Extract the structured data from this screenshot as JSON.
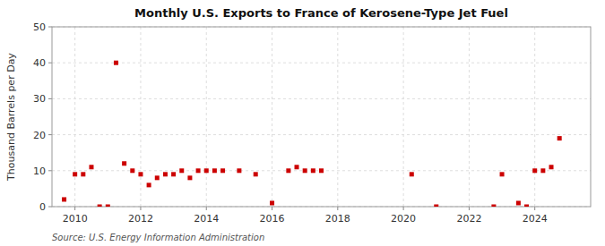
{
  "chart_data": {
    "type": "scatter",
    "title": "Monthly U.S. Exports to France of Kerosene-Type Jet Fuel",
    "y_label": "Thousand Barrels per Day",
    "annotations": [
      "Source: U.S. Energy Information Administration"
    ],
    "x": [
      2009.67,
      2010.0,
      2010.25,
      2010.5,
      2010.75,
      2011.0,
      2011.25,
      2011.5,
      2011.75,
      2012.0,
      2012.25,
      2012.5,
      2012.75,
      2013.0,
      2013.25,
      2013.5,
      2013.75,
      2014.0,
      2014.25,
      2014.5,
      2015.0,
      2015.5,
      2016.0,
      2016.5,
      2016.75,
      2017.0,
      2017.25,
      2017.5,
      2020.25,
      2021.0,
      2022.75,
      2023.0,
      2023.5,
      2023.75,
      2024.0,
      2024.25,
      2024.5,
      2024.75
    ],
    "values": [
      2,
      9,
      9,
      11,
      0,
      0,
      40,
      12,
      10,
      9,
      6,
      8,
      9,
      9,
      10,
      8,
      10,
      10,
      10,
      10,
      10,
      9,
      1,
      10,
      11,
      10,
      10,
      10,
      9,
      0,
      0,
      9,
      1,
      0,
      10,
      10,
      11,
      19
    ],
    "color": "#cc0000",
    "marker": "square",
    "grid": true,
    "xlim": [
      2009.3,
      2025.7
    ],
    "xticks": [
      2010,
      2012,
      2014,
      2016,
      2018,
      2020,
      2022,
      2024
    ],
    "ylim": [
      0,
      50
    ],
    "yticks": [
      0,
      10,
      20,
      30,
      40,
      50
    ]
  }
}
